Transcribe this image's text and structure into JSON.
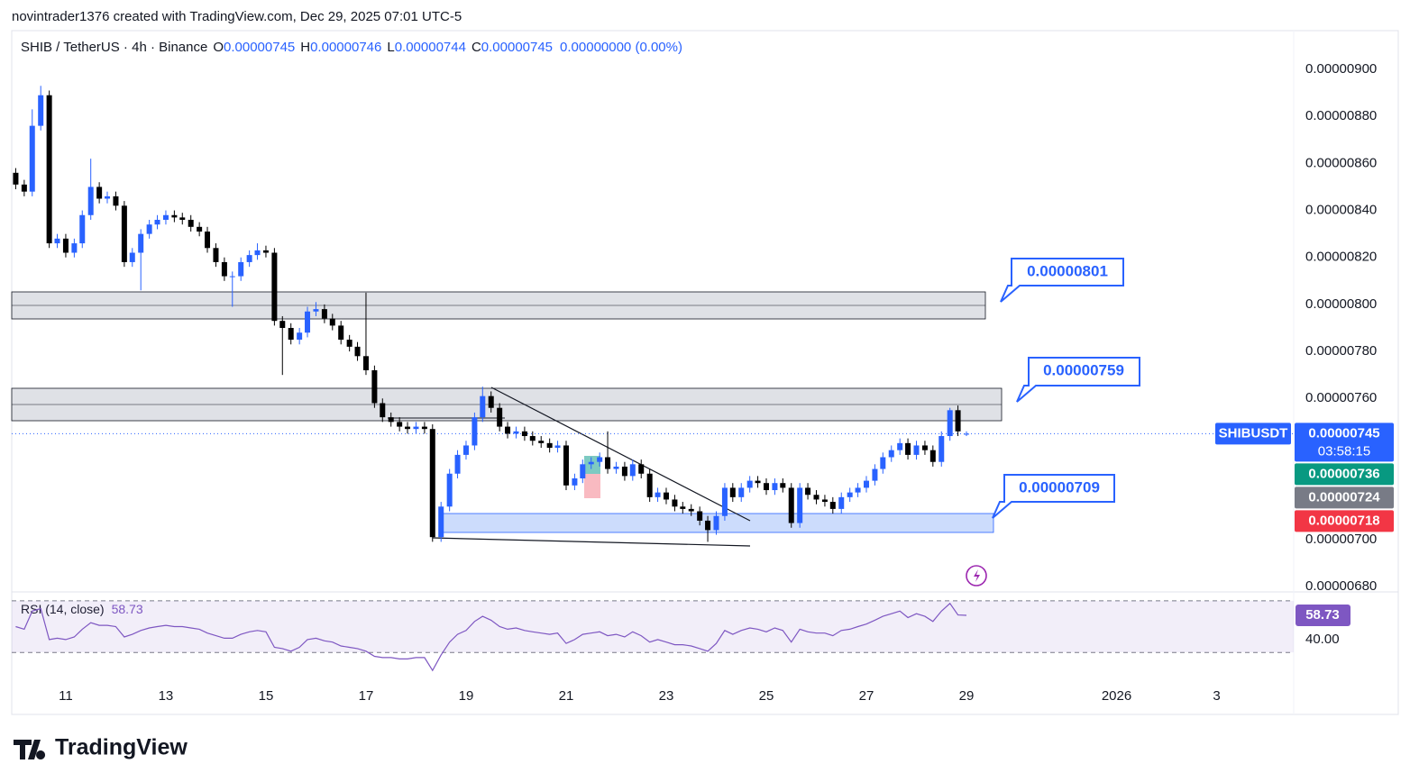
{
  "header": {
    "attribution": "novintrader1376 created with TradingView.com, Dec 29, 2025 07:01 UTC-5",
    "brand": "TradingView"
  },
  "chart_data": [
    {
      "type": "candlestick",
      "legend": {
        "symbol": "SHIB / TetherUS · 4h · Binance",
        "items": [
          {
            "key": "O",
            "value": "0.00000745"
          },
          {
            "key": "H",
            "value": "0.00000746"
          },
          {
            "key": "L",
            "value": "0.00000744"
          },
          {
            "key": "C",
            "value": "0.00000745"
          }
        ],
        "change": "0.00000000 (0.00%)"
      },
      "up_color": "#2962ff",
      "down_color": "#000000",
      "x": [
        10,
        10.17,
        10.33,
        10.5,
        10.67,
        10.83,
        11,
        11.17,
        11.33,
        11.5,
        11.67,
        11.83,
        12,
        12.17,
        12.33,
        12.5,
        12.67,
        12.83,
        13,
        13.17,
        13.33,
        13.5,
        13.67,
        13.83,
        14,
        14.17,
        14.33,
        14.5,
        14.67,
        14.83,
        15,
        15.17,
        15.33,
        15.5,
        15.67,
        15.83,
        16,
        16.17,
        16.33,
        16.5,
        16.67,
        16.83,
        17,
        17.17,
        17.33,
        17.5,
        17.67,
        17.83,
        18,
        18.17,
        18.33,
        18.5,
        18.67,
        18.83,
        19,
        19.17,
        19.33,
        19.5,
        19.67,
        19.83,
        20,
        20.17,
        20.33,
        20.5,
        20.67,
        20.83,
        21,
        21.17,
        21.33,
        21.5,
        21.67,
        21.83,
        22,
        22.17,
        22.33,
        22.5,
        22.67,
        22.83,
        23,
        23.17,
        23.33,
        23.5,
        23.67,
        23.83,
        24,
        24.17,
        24.33,
        24.5,
        24.67,
        24.83,
        25,
        25.17,
        25.33,
        25.5,
        25.67,
        25.83,
        26,
        26.17,
        26.33,
        26.5,
        26.67,
        26.83,
        27,
        27.17,
        27.33,
        27.5,
        27.67,
        27.83,
        28,
        28.17,
        28.33,
        28.5,
        28.67,
        28.83,
        29
      ],
      "open": [
        8.56e-06,
        8.51e-06,
        8.48e-06,
        8.76e-06,
        8.89e-06,
        8.26e-06,
        8.28e-06,
        8.22e-06,
        8.26e-06,
        8.38e-06,
        8.5e-06,
        8.45e-06,
        8.46e-06,
        8.42e-06,
        8.18e-06,
        8.22e-06,
        8.3e-06,
        8.34e-06,
        8.36e-06,
        8.38e-06,
        8.37e-06,
        8.36e-06,
        8.33e-06,
        8.31e-06,
        8.24e-06,
        8.18e-06,
        8.12e-06,
        8.12e-06,
        8.18e-06,
        8.21e-06,
        8.23e-06,
        8.22e-06,
        7.93e-06,
        7.9e-06,
        7.85e-06,
        7.88e-06,
        7.97e-06,
        7.98e-06,
        7.94e-06,
        7.91e-06,
        7.85e-06,
        7.82e-06,
        7.78e-06,
        7.72e-06,
        7.58e-06,
        7.52e-06,
        7.5e-06,
        7.48e-06,
        7.47e-06,
        7.48e-06,
        7.47e-06,
        7.01e-06,
        7.14e-06,
        7.28e-06,
        7.36e-06,
        7.4e-06,
        7.52e-06,
        7.61e-06,
        7.56e-06,
        7.48e-06,
        7.45e-06,
        7.46e-06,
        7.44e-06,
        7.42e-06,
        7.41e-06,
        7.39e-06,
        7.4e-06,
        7.23e-06,
        7.26e-06,
        7.32e-06,
        7.33e-06,
        7.35e-06,
        7.3e-06,
        7.31e-06,
        7.27e-06,
        7.32e-06,
        7.28e-06,
        7.18e-06,
        7.2e-06,
        7.17e-06,
        7.14e-06,
        7.13e-06,
        7.12e-06,
        7.08e-06,
        7.04e-06,
        7.1e-06,
        7.22e-06,
        7.18e-06,
        7.22e-06,
        7.25e-06,
        7.24e-06,
        7.21e-06,
        7.24e-06,
        7.22e-06,
        7.07e-06,
        7.22e-06,
        7.19e-06,
        7.17e-06,
        7.16e-06,
        7.13e-06,
        7.18e-06,
        7.2e-06,
        7.22e-06,
        7.25e-06,
        7.3e-06,
        7.35e-06,
        7.38e-06,
        7.41e-06,
        7.36e-06,
        7.4e-06,
        7.38e-06,
        7.33e-06,
        7.44e-06,
        7.55e-06,
        7.45e-06
      ],
      "high": [
        8.58e-06,
        8.53e-06,
        8.83e-06,
        8.93e-06,
        8.91e-06,
        8.3e-06,
        8.3e-06,
        8.28e-06,
        8.4e-06,
        8.62e-06,
        8.52e-06,
        8.48e-06,
        8.48e-06,
        8.44e-06,
        8.24e-06,
        8.32e-06,
        8.36e-06,
        8.38e-06,
        8.4e-06,
        8.4e-06,
        8.39e-06,
        8.38e-06,
        8.35e-06,
        8.33e-06,
        8.26e-06,
        8.2e-06,
        8.14e-06,
        8.2e-06,
        8.23e-06,
        8.26e-06,
        8.25e-06,
        8.24e-06,
        7.95e-06,
        7.92e-06,
        7.9e-06,
        7.99e-06,
        8.01e-06,
        8e-06,
        7.96e-06,
        7.93e-06,
        7.87e-06,
        7.84e-06,
        8.05e-06,
        7.74e-06,
        7.6e-06,
        7.54e-06,
        7.52e-06,
        7.5e-06,
        7.5e-06,
        7.5e-06,
        7.49e-06,
        7.16e-06,
        7.3e-06,
        7.38e-06,
        7.42e-06,
        7.54e-06,
        7.65e-06,
        7.63e-06,
        7.58e-06,
        7.5e-06,
        7.48e-06,
        7.48e-06,
        7.46e-06,
        7.44e-06,
        7.43e-06,
        7.42e-06,
        7.42e-06,
        7.28e-06,
        7.34e-06,
        7.35e-06,
        7.37e-06,
        7.46e-06,
        7.33e-06,
        7.33e-06,
        7.34e-06,
        7.34e-06,
        7.3e-06,
        7.22e-06,
        7.22e-06,
        7.19e-06,
        7.16e-06,
        7.15e-06,
        7.14e-06,
        7.1e-06,
        7.12e-06,
        7.24e-06,
        7.24e-06,
        7.24e-06,
        7.27e-06,
        7.27e-06,
        7.26e-06,
        7.26e-06,
        7.26e-06,
        7.24e-06,
        7.24e-06,
        7.24e-06,
        7.21e-06,
        7.19e-06,
        7.18e-06,
        7.2e-06,
        7.22e-06,
        7.24e-06,
        7.27e-06,
        7.32e-06,
        7.37e-06,
        7.4e-06,
        7.43e-06,
        7.43e-06,
        7.42e-06,
        7.42e-06,
        7.4e-06,
        7.46e-06,
        7.56e-06,
        7.57e-06,
        7.46e-06
      ],
      "low": [
        8.49e-06,
        8.46e-06,
        8.46e-06,
        8.74e-06,
        8.24e-06,
        8.24e-06,
        8.2e-06,
        8.2e-06,
        8.24e-06,
        8.36e-06,
        8.43e-06,
        8.43e-06,
        8.4e-06,
        8.16e-06,
        8.16e-06,
        8.06e-06,
        8.28e-06,
        8.32e-06,
        8.34e-06,
        8.35e-06,
        8.34e-06,
        8.31e-06,
        8.29e-06,
        8.22e-06,
        8.16e-06,
        8.1e-06,
        7.99e-06,
        8.1e-06,
        8.16e-06,
        8.19e-06,
        8.2e-06,
        7.91e-06,
        7.7e-06,
        7.83e-06,
        7.83e-06,
        7.86e-06,
        7.95e-06,
        7.92e-06,
        7.89e-06,
        7.83e-06,
        7.8e-06,
        7.76e-06,
        7.7e-06,
        7.56e-06,
        7.5e-06,
        7.48e-06,
        7.46e-06,
        7.45e-06,
        7.45e-06,
        7.45e-06,
        6.99e-06,
        6.99e-06,
        7.12e-06,
        7.26e-06,
        7.34e-06,
        7.38e-06,
        7.5e-06,
        7.54e-06,
        7.46e-06,
        7.43e-06,
        7.43e-06,
        7.42e-06,
        7.4e-06,
        7.39e-06,
        7.37e-06,
        7.37e-06,
        7.21e-06,
        7.21e-06,
        7.24e-06,
        7.3e-06,
        7.31e-06,
        7.28e-06,
        7.28e-06,
        7.25e-06,
        7.25e-06,
        7.26e-06,
        7.16e-06,
        7.16e-06,
        7.15e-06,
        7.12e-06,
        7.11e-06,
        7.1e-06,
        7.06e-06,
        6.99e-06,
        7.02e-06,
        7.08e-06,
        7.16e-06,
        7.16e-06,
        7.2e-06,
        7.22e-06,
        7.19e-06,
        7.19e-06,
        7.2e-06,
        7.05e-06,
        7.05e-06,
        7.17e-06,
        7.15e-06,
        7.14e-06,
        7.11e-06,
        7.11e-06,
        7.16e-06,
        7.18e-06,
        7.2e-06,
        7.23e-06,
        7.28e-06,
        7.33e-06,
        7.36e-06,
        7.34e-06,
        7.34e-06,
        7.36e-06,
        7.31e-06,
        7.31e-06,
        7.42e-06,
        7.44e-06,
        7.44e-06
      ],
      "close": [
        8.51e-06,
        8.48e-06,
        8.76e-06,
        8.89e-06,
        8.26e-06,
        8.28e-06,
        8.22e-06,
        8.26e-06,
        8.38e-06,
        8.5e-06,
        8.45e-06,
        8.46e-06,
        8.42e-06,
        8.18e-06,
        8.22e-06,
        8.3e-06,
        8.34e-06,
        8.36e-06,
        8.38e-06,
        8.37e-06,
        8.36e-06,
        8.33e-06,
        8.31e-06,
        8.24e-06,
        8.18e-06,
        8.12e-06,
        8.12e-06,
        8.18e-06,
        8.21e-06,
        8.23e-06,
        8.22e-06,
        7.93e-06,
        7.9e-06,
        7.85e-06,
        7.88e-06,
        7.97e-06,
        7.98e-06,
        7.94e-06,
        7.91e-06,
        7.85e-06,
        7.82e-06,
        7.78e-06,
        7.72e-06,
        7.58e-06,
        7.52e-06,
        7.5e-06,
        7.48e-06,
        7.47e-06,
        7.48e-06,
        7.47e-06,
        7.01e-06,
        7.14e-06,
        7.28e-06,
        7.36e-06,
        7.4e-06,
        7.52e-06,
        7.61e-06,
        7.56e-06,
        7.48e-06,
        7.45e-06,
        7.46e-06,
        7.44e-06,
        7.42e-06,
        7.41e-06,
        7.39e-06,
        7.4e-06,
        7.23e-06,
        7.26e-06,
        7.32e-06,
        7.33e-06,
        7.35e-06,
        7.3e-06,
        7.31e-06,
        7.27e-06,
        7.32e-06,
        7.28e-06,
        7.18e-06,
        7.2e-06,
        7.17e-06,
        7.14e-06,
        7.13e-06,
        7.12e-06,
        7.08e-06,
        7.04e-06,
        7.1e-06,
        7.22e-06,
        7.18e-06,
        7.22e-06,
        7.25e-06,
        7.24e-06,
        7.21e-06,
        7.24e-06,
        7.22e-06,
        7.07e-06,
        7.22e-06,
        7.19e-06,
        7.17e-06,
        7.16e-06,
        7.13e-06,
        7.18e-06,
        7.2e-06,
        7.22e-06,
        7.25e-06,
        7.3e-06,
        7.35e-06,
        7.38e-06,
        7.41e-06,
        7.36e-06,
        7.4e-06,
        7.38e-06,
        7.33e-06,
        7.44e-06,
        7.55e-06,
        7.46e-06,
        7.45e-06
      ],
      "xlim": [
        9.92,
        35.54
      ],
      "xticks": [
        11,
        13,
        15,
        17,
        19,
        21,
        23,
        25,
        27,
        29,
        {
          "value": 32,
          "label": "2026"
        },
        {
          "value": 34,
          "label": "3"
        }
      ],
      "ylim": [
        6.777e-06,
        9.161e-06
      ],
      "yticks": [
        {
          "value": 9e-06,
          "label": "0.00000900"
        },
        {
          "value": 8.8e-06,
          "label": "0.00000880"
        },
        {
          "value": 8.6e-06,
          "label": "0.00000860"
        },
        {
          "value": 8.4e-06,
          "label": "0.00000840"
        },
        {
          "value": 8.2e-06,
          "label": "0.00000820"
        },
        {
          "value": 8e-06,
          "label": "0.00000800"
        },
        {
          "value": 7.8e-06,
          "label": "0.00000780"
        },
        {
          "value": 7.6e-06,
          "label": "0.00000760"
        },
        {
          "value": 7.4e-06,
          "label": "0.00000740"
        },
        {
          "value": 7.2e-06,
          "label": "0.00000720"
        },
        {
          "value": 7e-06,
          "label": "0.00000700"
        },
        {
          "value": 6.8e-06,
          "label": "0.00000680"
        }
      ],
      "symbol_tag": "SHIBUSDT",
      "price_tags": [
        {
          "value": 7.45e-06,
          "label": "0.00000745",
          "sub": "03:58:15",
          "color": "#2962ff"
        },
        {
          "value": 7.36e-06,
          "label": "0.00000736",
          "color": "#089981"
        },
        {
          "value": 7.24e-06,
          "label": "0.00000724",
          "color": "#787b86"
        },
        {
          "value": 7.18e-06,
          "label": "0.00000718",
          "color": "#f23645"
        }
      ],
      "annotations": [
        "0.00000801",
        "0.00000759",
        "0.00000709"
      ]
    },
    {
      "type": "line",
      "title": "RSI (14, close)",
      "color": "#7e57c2",
      "values": [
        50,
        48,
        62,
        64,
        40,
        41,
        40,
        42,
        48,
        53,
        51,
        51,
        50,
        42,
        44,
        47,
        49,
        50,
        51,
        50,
        50,
        49,
        48,
        45,
        43,
        41,
        41,
        44,
        46,
        47,
        46,
        34,
        33,
        31,
        34,
        40,
        41,
        39,
        38,
        35,
        34,
        33,
        31,
        27,
        26,
        26,
        25,
        25,
        26,
        26,
        16,
        28,
        38,
        44,
        47,
        54,
        58,
        55,
        50,
        48,
        49,
        47,
        46,
        45,
        44,
        45,
        37,
        40,
        44,
        45,
        46,
        43,
        44,
        42,
        46,
        43,
        38,
        40,
        38,
        36,
        36,
        35,
        33,
        31,
        37,
        47,
        44,
        47,
        49,
        48,
        46,
        49,
        47,
        38,
        48,
        46,
        45,
        45,
        43,
        47,
        48,
        50,
        52,
        55,
        58,
        60,
        62,
        57,
        60,
        58,
        54,
        62,
        68,
        59,
        58.73
      ],
      "ylim": [
        7.1,
        76.9
      ],
      "bands": [
        30,
        70
      ],
      "yticks": [
        {
          "value": 40,
          "label": "40.00"
        }
      ]
    }
  ]
}
